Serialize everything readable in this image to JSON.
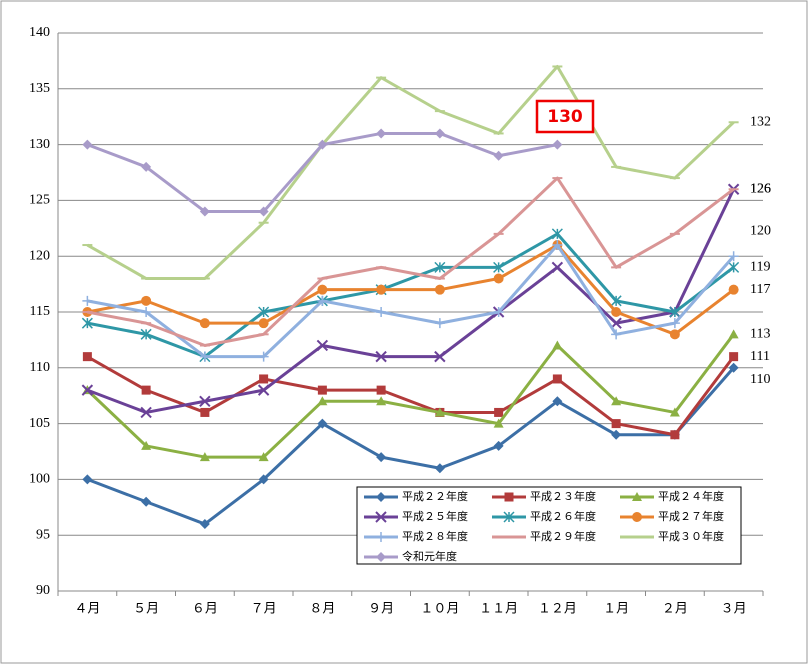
{
  "chart_data": {
    "type": "line",
    "categories": [
      "４月",
      "５月",
      "６月",
      "７月",
      "８月",
      "９月",
      "１０月",
      "１１月",
      "１２月",
      "１月",
      "２月",
      "３月"
    ],
    "ylim": [
      90,
      140
    ],
    "yticks": [
      90,
      95,
      100,
      105,
      110,
      115,
      120,
      125,
      130,
      135,
      140
    ],
    "grid": true,
    "series": [
      {
        "name": "平成２２年度",
        "color": "#3c6fa6",
        "marker": "diamond",
        "values": [
          100,
          98,
          96,
          100,
          105,
          102,
          101,
          103,
          107,
          104,
          104,
          110
        ]
      },
      {
        "name": "平成２３年度",
        "color": "#b23b3b",
        "marker": "square",
        "values": [
          111,
          108,
          106,
          109,
          108,
          108,
          106,
          106,
          109,
          105,
          104,
          111
        ]
      },
      {
        "name": "平成２４年度",
        "color": "#8bb043",
        "marker": "triangle",
        "values": [
          108,
          103,
          102,
          102,
          107,
          107,
          106,
          105,
          112,
          107,
          106,
          113
        ]
      },
      {
        "name": "平成２５年度",
        "color": "#6a4197",
        "marker": "x",
        "values": [
          108,
          106,
          107,
          108,
          112,
          111,
          111,
          115,
          119,
          114,
          115,
          126
        ]
      },
      {
        "name": "平成２６年度",
        "color": "#2e97a6",
        "marker": "star",
        "values": [
          114,
          113,
          111,
          115,
          116,
          117,
          119,
          119,
          122,
          116,
          115,
          119
        ]
      },
      {
        "name": "平成２７年度",
        "color": "#e8832f",
        "marker": "circle",
        "values": [
          115,
          116,
          114,
          114,
          117,
          117,
          117,
          118,
          121,
          115,
          113,
          117
        ]
      },
      {
        "name": "平成２８年度",
        "color": "#8fb0df",
        "marker": "plus",
        "values": [
          116,
          115,
          111,
          111,
          116,
          115,
          114,
          115,
          121,
          113,
          114,
          120
        ]
      },
      {
        "name": "平成２９年度",
        "color": "#d99595",
        "marker": "dash",
        "values": [
          115,
          114,
          112,
          113,
          118,
          119,
          118,
          122,
          127,
          119,
          122,
          126
        ]
      },
      {
        "name": "平成３０年度",
        "color": "#b6d08c",
        "marker": "dash",
        "values": [
          121,
          118,
          118,
          123,
          130,
          136,
          133,
          131,
          137,
          128,
          127,
          132
        ]
      },
      {
        "name": "令和元年度",
        "color": "#a89bc9",
        "marker": "diamond",
        "values": [
          130,
          128,
          124,
          124,
          130,
          131,
          131,
          129,
          130,
          null,
          null,
          null
        ]
      }
    ]
  }
}
